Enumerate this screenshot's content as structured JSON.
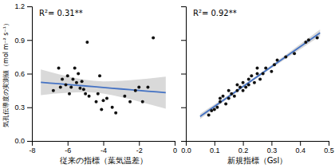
{
  "chart_data": [
    {
      "type": "scatter",
      "xlabel": "従来の指標（葉気温差）",
      "ylabel": "気孔伝導度の実測値（mol m⁻² s⁻¹）",
      "annotation": "R²= 0.31**",
      "xlim": [
        -8,
        0
      ],
      "ylim": [
        0,
        1.2
      ],
      "xticks": [
        -8,
        -6,
        -4,
        -2,
        0
      ],
      "yticks": [
        {
          "value": 0,
          "label": "0.0"
        },
        0.3,
        0.6,
        0.9,
        1.2
      ],
      "series": [
        {
          "type": "area",
          "color": "#aaaaaa",
          "x": [
            -7.5,
            -7.0,
            -6.5,
            -6.0,
            -5.5,
            -5.0,
            -4.5,
            -4.0,
            -3.5,
            -3.0,
            -2.5,
            -2.0,
            -1.5,
            -1.0,
            -0.5
          ],
          "lower": [
            0.4089,
            0.4169,
            0.4241,
            0.4301,
            0.434,
            0.4347,
            0.4309,
            0.4219,
            0.4082,
            0.3912,
            0.3721,
            0.3517,
            0.3305,
            0.3088,
            0.2867
          ],
          "upper": [
            0.6371,
            0.6159,
            0.5954,
            0.5762,
            0.559,
            0.5451,
            0.5356,
            0.5314,
            0.5319,
            0.5356,
            0.5414,
            0.5486,
            0.5565,
            0.565,
            0.5739
          ]
        },
        {
          "type": "line",
          "color": "#4472C4",
          "x": [
            -7.5,
            -7.0,
            -6.5,
            -6.0,
            -5.5,
            -5.0,
            -4.5,
            -4.0,
            -3.5,
            -3.0,
            -2.5,
            -2.0,
            -1.5,
            -1.0,
            -0.5
          ],
          "values": [
            0.523,
            0.5164,
            0.5098,
            0.5031,
            0.4965,
            0.4899,
            0.4833,
            0.4766,
            0.47,
            0.4634,
            0.4568,
            0.4501,
            0.4435,
            0.4369,
            0.4303
          ]
        },
        {
          "type": "scatter",
          "color": "#111111",
          "x": [
            -6.8,
            -6.5,
            -6.4,
            -6.3,
            -6.1,
            -6.0,
            -5.9,
            -5.8,
            -5.7,
            -5.6,
            -5.5,
            -5.4,
            -5.3,
            -5.2,
            -5.1,
            -5.0,
            -4.9,
            -4.8,
            -4.4,
            -4.3,
            -4.2,
            -4.1,
            -4.0,
            -3.8,
            -3.5,
            -3.3,
            -2.8,
            -2.5,
            -2.2,
            -2.0,
            -1.8,
            -1.5,
            -1.2
          ],
          "values": [
            0.45,
            0.65,
            0.48,
            0.55,
            0.5,
            0.58,
            0.42,
            0.48,
            0.55,
            0.65,
            0.52,
            0.6,
            0.47,
            0.53,
            0.46,
            0.42,
            0.88,
            0.4,
            0.35,
            0.42,
            0.58,
            0.28,
            0.36,
            0.38,
            0.3,
            0.25,
            0.4,
            0.35,
            0.45,
            0.48,
            0.35,
            0.48,
            0.92
          ]
        }
      ]
    },
    {
      "type": "scatter",
      "xlabel": "新規指標（Gsl）",
      "annotation": "R²= 0.92**",
      "xlim": [
        0.0,
        0.5
      ],
      "ylim": [
        0,
        1.2
      ],
      "xticks": [
        {
          "value": 0,
          "label": "0.0"
        },
        0.1,
        0.2,
        0.3,
        0.4,
        0.5
      ],
      "yticks": [
        {
          "value": 0,
          "label": "0.0"
        },
        0.3,
        0.6,
        0.9,
        1.2
      ],
      "tick_labels": "x",
      "series": [
        {
          "type": "area",
          "color": "#aaaaaa",
          "x": [
            0.05,
            0.08,
            0.11,
            0.14,
            0.17,
            0.2,
            0.23,
            0.26,
            0.29,
            0.32,
            0.35,
            0.38,
            0.41,
            0.44,
            0.47
          ],
          "lower": [
            0.1958,
            0.252,
            0.308,
            0.3636,
            0.4189,
            0.4734,
            0.5269,
            0.5794,
            0.6311,
            0.6821,
            0.7327,
            0.7831,
            0.8333,
            0.8834,
            0.9334
          ],
          "upper": [
            0.2422,
            0.2924,
            0.3429,
            0.3936,
            0.4448,
            0.4967,
            0.5496,
            0.6035,
            0.6583,
            0.7137,
            0.7695,
            0.8255,
            0.8817,
            0.9381,
            0.9945
          ]
        },
        {
          "type": "line",
          "color": "#4472C4",
          "x": [
            0.05,
            0.08,
            0.11,
            0.14,
            0.17,
            0.2,
            0.23,
            0.26,
            0.29,
            0.32,
            0.35,
            0.38,
            0.41,
            0.44,
            0.47
          ],
          "values": [
            0.219,
            0.2722,
            0.3254,
            0.3786,
            0.4318,
            0.4851,
            0.5383,
            0.5915,
            0.6447,
            0.6979,
            0.7511,
            0.8043,
            0.8575,
            0.9107,
            0.9639
          ]
        },
        {
          "type": "scatter",
          "color": "#111111",
          "x": [
            0.08,
            0.09,
            0.1,
            0.11,
            0.12,
            0.12,
            0.13,
            0.14,
            0.15,
            0.15,
            0.16,
            0.17,
            0.18,
            0.18,
            0.19,
            0.2,
            0.2,
            0.21,
            0.22,
            0.22,
            0.23,
            0.24,
            0.25,
            0.25,
            0.26,
            0.27,
            0.28,
            0.3,
            0.31,
            0.32,
            0.35,
            0.38,
            0.42,
            0.43,
            0.46
          ],
          "values": [
            0.23,
            0.27,
            0.28,
            0.3,
            0.35,
            0.38,
            0.4,
            0.33,
            0.38,
            0.45,
            0.42,
            0.4,
            0.45,
            0.5,
            0.48,
            0.45,
            0.52,
            0.48,
            0.5,
            0.55,
            0.58,
            0.52,
            0.6,
            0.65,
            0.55,
            0.6,
            0.65,
            0.62,
            0.68,
            0.72,
            0.75,
            0.78,
            0.88,
            0.9,
            0.92
          ]
        }
      ]
    }
  ]
}
